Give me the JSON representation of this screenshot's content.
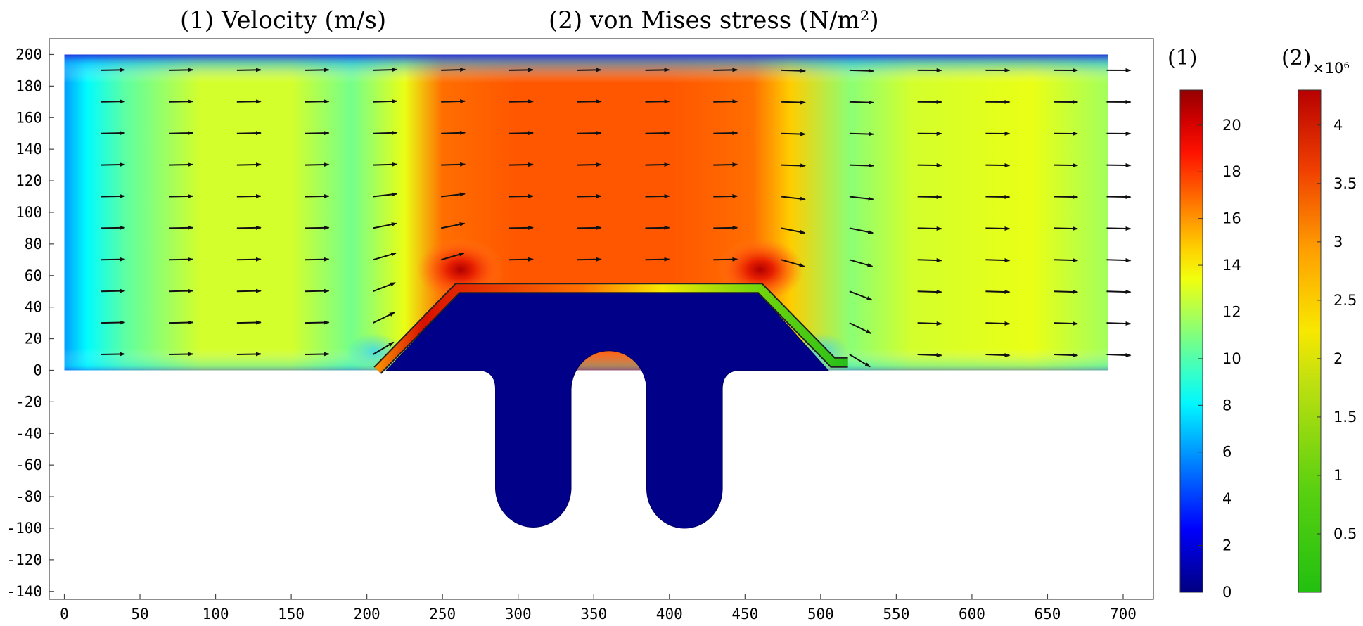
{
  "titles": {
    "velocity": "(1) Velocity (m/s)",
    "stress": "(2) von Mises stress (N/m²)"
  },
  "colorbar1": {
    "header": "(1)",
    "ticks": [
      "0",
      "2",
      "4",
      "6",
      "8",
      "10",
      "12",
      "14",
      "16",
      "18",
      "20"
    ]
  },
  "colorbar2": {
    "header": "(2)",
    "multiplier": "×10⁶",
    "ticks": [
      "0.5",
      "1",
      "1.5",
      "2",
      "2.5",
      "3",
      "3.5",
      "4"
    ]
  },
  "chart_data": {
    "type": "heatmap",
    "xlim": [
      -10,
      720
    ],
    "ylim": [
      -145,
      210
    ],
    "xticks": [
      0,
      50,
      100,
      150,
      200,
      250,
      300,
      350,
      400,
      450,
      500,
      550,
      600,
      650,
      700
    ],
    "yticks": [
      -140,
      -120,
      -100,
      -80,
      -60,
      -40,
      -20,
      0,
      20,
      40,
      60,
      80,
      100,
      120,
      140,
      160,
      180,
      200
    ],
    "x_tick_labels": [
      "0",
      "50",
      "100",
      "150",
      "200",
      "250",
      "300",
      "350",
      "400",
      "450",
      "500",
      "550",
      "600",
      "650",
      "700"
    ],
    "y_tick_labels": [
      "-140",
      "-120",
      "-100",
      "-80",
      "-60",
      "-40",
      "-20",
      "0",
      "20",
      "40",
      "60",
      "80",
      "100",
      "120",
      "140",
      "160",
      "180",
      "200"
    ],
    "fluid_domain": {
      "x": [
        0,
        690
      ],
      "y": [
        0,
        200
      ]
    },
    "velocity_field": {
      "quantity": "(1) Velocity (m/s)",
      "range": [
        0,
        21.5
      ],
      "colorbar_ticks": [
        0,
        2,
        4,
        6,
        8,
        10,
        12,
        14,
        16,
        18,
        20
      ],
      "profile_along_x": [
        [
          0,
          6
        ],
        [
          15,
          8
        ],
        [
          40,
          10
        ],
        [
          90,
          12.5
        ],
        [
          150,
          12.5
        ],
        [
          190,
          10.5
        ],
        [
          225,
          13
        ],
        [
          250,
          16.5
        ],
        [
          300,
          17
        ],
        [
          400,
          17
        ],
        [
          455,
          16.5
        ],
        [
          480,
          14.5
        ],
        [
          520,
          11
        ],
        [
          560,
          12.5
        ],
        [
          640,
          13
        ],
        [
          690,
          11.5
        ]
      ],
      "peak_locations": [
        [
          262,
          62
        ],
        [
          460,
          62
        ]
      ],
      "peak_value": 21
    },
    "stress_field": {
      "quantity": "(2) von Mises stress (N/m²)",
      "multiplier": "×10⁶",
      "range": [
        0,
        4.3
      ],
      "colorbar_ticks": [
        0.5,
        1,
        1.5,
        2,
        2.5,
        3,
        3.5,
        4
      ],
      "thin_structure_path": [
        [
          207,
          0
        ],
        [
          260,
          52
        ],
        [
          460,
          52
        ],
        [
          508,
          5
        ],
        [
          518,
          5
        ]
      ],
      "stress_along_path": [
        4.2,
        4.0,
        1.2,
        0.6,
        0.5
      ]
    },
    "solid_body": {
      "top_path": [
        [
          213,
          0
        ],
        [
          262,
          50
        ],
        [
          458,
          50
        ],
        [
          505,
          0
        ]
      ],
      "legs": [
        {
          "x_center": 310,
          "half_width": 25,
          "bottom": -100
        },
        {
          "x_center": 410,
          "half_width": 25,
          "bottom": -100
        }
      ]
    },
    "arrow_columns_x": [
      25,
      70,
      115,
      160,
      205,
      250,
      295,
      340,
      385,
      430,
      475,
      520,
      565,
      610,
      655,
      690
    ],
    "arrow_rows_y": [
      10,
      30,
      50,
      70,
      90,
      110,
      130,
      150,
      170,
      190
    ]
  }
}
